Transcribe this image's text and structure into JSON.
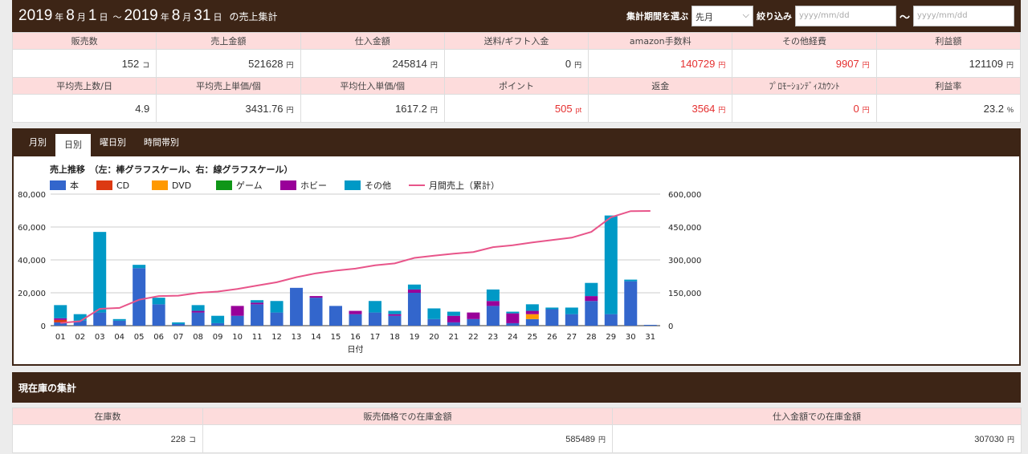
{
  "header": {
    "year1": "2019",
    "nen1": "年",
    "month1": "8",
    "getsu1": "月",
    "day1": "1",
    "nichi1": "日",
    "tilde": "～",
    "year2": "2019",
    "nen2": "年",
    "month2": "8",
    "getsu2": "月",
    "day2": "31",
    "nichi2": "日",
    "suffix": "の売上集計",
    "period_label": "集計期間を選ぶ",
    "period_value": "先月",
    "filter_label": "絞り込み",
    "from_placeholder": "yyyy/mm/dd",
    "range_tilde": "～",
    "to_placeholder": "yyyy/mm/dd"
  },
  "stats": {
    "row1_labels": [
      "販売数",
      "売上金額",
      "仕入金額",
      "送料/ギフト入金",
      "amazon手数料",
      "その他経費",
      "利益額"
    ],
    "row1_values": [
      {
        "v": "152",
        "u": "コ",
        "red": false
      },
      {
        "v": "521628",
        "u": "円",
        "red": false
      },
      {
        "v": "245814",
        "u": "円",
        "red": false
      },
      {
        "v": "0",
        "u": "円",
        "red": false
      },
      {
        "v": "140729",
        "u": "円",
        "red": true
      },
      {
        "v": "9907",
        "u": "円",
        "red": true
      },
      {
        "v": "121109",
        "u": "円",
        "red": false
      }
    ],
    "row2_labels": [
      "平均売上数/日",
      "平均売上単価/個",
      "平均仕入単価/個",
      "ポイント",
      "返金",
      "ﾌﾟﾛﾓｰｼｮﾝﾃﾞｨｽｶｳﾝﾄ",
      "利益率"
    ],
    "row2_values": [
      {
        "v": "4.9",
        "u": "",
        "red": false
      },
      {
        "v": "3431.76",
        "u": "円",
        "red": false
      },
      {
        "v": "1617.2",
        "u": "円",
        "red": false
      },
      {
        "v": "505",
        "u": "pt",
        "red": true
      },
      {
        "v": "3564",
        "u": "円",
        "red": true
      },
      {
        "v": "0",
        "u": "円",
        "red": true
      },
      {
        "v": "23.2",
        "u": "%",
        "red": false
      }
    ]
  },
  "tabs": [
    "月別",
    "日別",
    "曜日別",
    "時間帯別"
  ],
  "active_tab": 1,
  "chart_data": {
    "type": "bar",
    "title": "売上推移　（左：棒グラフスケール、右：線グラフスケール）",
    "xlabel": "日付",
    "categories": [
      "01",
      "02",
      "03",
      "04",
      "05",
      "06",
      "07",
      "08",
      "09",
      "10",
      "11",
      "12",
      "13",
      "14",
      "15",
      "16",
      "17",
      "18",
      "19",
      "20",
      "21",
      "22",
      "23",
      "24",
      "25",
      "26",
      "27",
      "28",
      "29",
      "30",
      "31"
    ],
    "ylim_left": [
      0,
      80000
    ],
    "ylim_right": [
      0,
      600000
    ],
    "yticks_left": [
      "0",
      "20,000",
      "40,000",
      "60,000",
      "80,000"
    ],
    "yticks_right": [
      "0",
      "150,000",
      "300,000",
      "450,000",
      "600,000"
    ],
    "colors": {
      "本": "#3366cc",
      "CD": "#dc3912",
      "DVD": "#ff9900",
      "ゲーム": "#109618",
      "ホビー": "#990099",
      "その他": "#0099c6",
      "月間売上（累計）": "#e8558a"
    },
    "series": [
      {
        "name": "本",
        "values": [
          2000,
          3000,
          8000,
          3000,
          35000,
          13000,
          1000,
          8000,
          1500,
          6000,
          13000,
          8000,
          23000,
          17000,
          12000,
          7000,
          8000,
          6000,
          20000,
          4000,
          2000,
          4000,
          12000,
          1500,
          4000,
          10000,
          7000,
          15000,
          7000,
          27000,
          500
        ]
      },
      {
        "name": "CD",
        "values": [
          1500,
          0,
          0,
          0,
          0,
          0,
          0,
          0,
          0,
          0,
          0,
          0,
          0,
          0,
          0,
          0,
          0,
          0,
          0,
          0,
          0,
          0,
          0,
          0,
          0,
          0,
          0,
          0,
          0,
          0,
          0
        ]
      },
      {
        "name": "DVD",
        "values": [
          0,
          0,
          0,
          0,
          0,
          0,
          0,
          0,
          0,
          0,
          0,
          0,
          0,
          0,
          0,
          0,
          0,
          0,
          0,
          0,
          0,
          0,
          0,
          0,
          3000,
          0,
          0,
          0,
          0,
          0,
          0
        ]
      },
      {
        "name": "ゲーム",
        "values": [
          0,
          0,
          0,
          0,
          0,
          0,
          0,
          0,
          0,
          0,
          0,
          0,
          0,
          0,
          0,
          0,
          0,
          0,
          0,
          0,
          0,
          0,
          0,
          0,
          0,
          0,
          0,
          0,
          0,
          0,
          0
        ]
      },
      {
        "name": "ホビー",
        "values": [
          1000,
          0,
          0,
          0,
          0,
          0,
          0,
          1000,
          0,
          6000,
          1000,
          0,
          0,
          1000,
          0,
          2000,
          0,
          1000,
          2000,
          0,
          4000,
          4000,
          3000,
          6000,
          2000,
          0,
          0,
          3000,
          0,
          0,
          0
        ]
      },
      {
        "name": "その他",
        "values": [
          8000,
          4000,
          49000,
          1000,
          2000,
          4000,
          1000,
          3500,
          4500,
          0,
          1500,
          7000,
          0,
          0,
          0,
          0,
          7000,
          2000,
          3000,
          6500,
          2500,
          0,
          7000,
          1000,
          4000,
          1000,
          4000,
          8000,
          60000,
          1000,
          0
        ]
      },
      {
        "name": "月間売上（累計）",
        "axis": "right",
        "type": "line",
        "values": [
          12500,
          20000,
          77000,
          81000,
          118000,
          135000,
          137000,
          149500,
          155500,
          167500,
          183000,
          198000,
          221000,
          239000,
          251000,
          260000,
          275000,
          284000,
          309000,
          319500,
          328000,
          336000,
          358000,
          366500,
          379500,
          390500,
          401500,
          427500,
          494500,
          522500,
          523000
        ]
      }
    ],
    "grid": true,
    "legend": "top-left"
  },
  "stock": {
    "header": "現在庫の集計",
    "labels": [
      "在庫数",
      "販売価格での在庫金額",
      "仕入金額での在庫金額"
    ],
    "values": [
      {
        "v": "228",
        "u": "コ"
      },
      {
        "v": "585489",
        "u": "円"
      },
      {
        "v": "307030",
        "u": "円"
      }
    ]
  }
}
